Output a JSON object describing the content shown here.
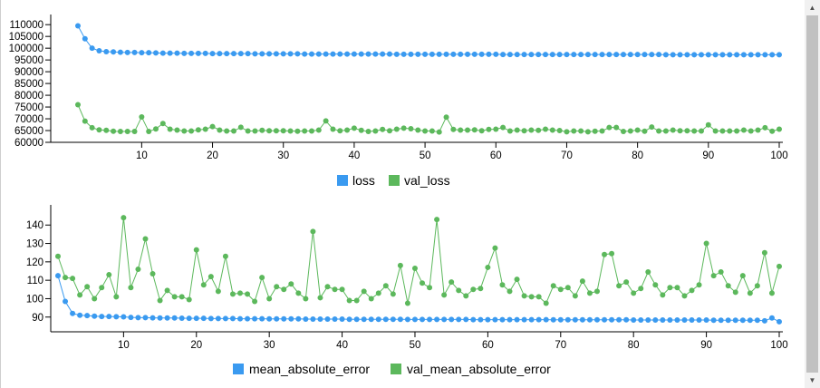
{
  "chart_data": [
    {
      "type": "line",
      "x": [
        1,
        2,
        3,
        4,
        5,
        6,
        7,
        8,
        9,
        10,
        11,
        12,
        13,
        14,
        15,
        16,
        17,
        18,
        19,
        20,
        21,
        22,
        23,
        24,
        25,
        26,
        27,
        28,
        29,
        30,
        31,
        32,
        33,
        34,
        35,
        36,
        37,
        38,
        39,
        40,
        41,
        42,
        43,
        44,
        45,
        46,
        47,
        48,
        49,
        50,
        51,
        52,
        53,
        54,
        55,
        56,
        57,
        58,
        59,
        60,
        61,
        62,
        63,
        64,
        65,
        66,
        67,
        68,
        69,
        70,
        71,
        72,
        73,
        74,
        75,
        76,
        77,
        78,
        79,
        80,
        81,
        82,
        83,
        84,
        85,
        86,
        87,
        88,
        89,
        90,
        91,
        92,
        93,
        94,
        95,
        96,
        97,
        98,
        99,
        100
      ],
      "xticks": [
        10,
        20,
        30,
        40,
        50,
        60,
        70,
        80,
        90,
        100
      ],
      "yticks": [
        60000,
        65000,
        70000,
        75000,
        80000,
        85000,
        90000,
        95000,
        100000,
        105000,
        110000
      ],
      "ylim": [
        60000,
        112000
      ],
      "xlim": [
        0,
        100
      ],
      "legend_position": "bottom",
      "series": [
        {
          "name": "loss",
          "color": "#3a9af0",
          "values": [
            109500,
            104000,
            100000,
            98900,
            98500,
            98400,
            98300,
            98200,
            98200,
            98100,
            98100,
            98000,
            97900,
            97900,
            97900,
            97800,
            97800,
            97800,
            97800,
            97700,
            97700,
            97700,
            97700,
            97700,
            97700,
            97600,
            97600,
            97600,
            97600,
            97600,
            97600,
            97600,
            97500,
            97500,
            97500,
            97500,
            97500,
            97500,
            97500,
            97500,
            97500,
            97500,
            97500,
            97500,
            97500,
            97400,
            97400,
            97400,
            97400,
            97400,
            97400,
            97400,
            97400,
            97400,
            97400,
            97400,
            97400,
            97400,
            97400,
            97400,
            97300,
            97300,
            97300,
            97300,
            97300,
            97300,
            97300,
            97300,
            97300,
            97300,
            97300,
            97300,
            97300,
            97300,
            97300,
            97300,
            97300,
            97300,
            97300,
            97300,
            97300,
            97300,
            97300,
            97200,
            97200,
            97200,
            97200,
            97200,
            97200,
            97200,
            97200,
            97200,
            97200,
            97200,
            97200,
            97200,
            97200,
            97200,
            97200,
            97200
          ]
        },
        {
          "name": "val_loss",
          "color": "#5cb85c",
          "values": [
            76000,
            69000,
            66200,
            65300,
            65100,
            64700,
            64600,
            64600,
            64600,
            70800,
            64600,
            65700,
            68000,
            65600,
            65200,
            64800,
            64800,
            65300,
            65600,
            66700,
            65200,
            64800,
            64800,
            66400,
            64800,
            64800,
            65100,
            64900,
            64900,
            64900,
            64800,
            64700,
            64800,
            64800,
            65200,
            69100,
            65600,
            64900,
            65200,
            66000,
            65100,
            64600,
            64800,
            65500,
            64900,
            65600,
            66000,
            65800,
            65200,
            64800,
            64800,
            64400,
            70700,
            65500,
            65200,
            65200,
            65300,
            64900,
            65500,
            65600,
            66300,
            64800,
            65200,
            64900,
            65200,
            65100,
            65600,
            65200,
            65000,
            64500,
            64800,
            64800,
            64500,
            64700,
            64800,
            66300,
            66300,
            64600,
            64800,
            65200,
            64700,
            66500,
            64800,
            64800,
            65200,
            64900,
            64900,
            64800,
            64800,
            67400,
            64800,
            64800,
            64800,
            64800,
            65200,
            64800,
            65200,
            66200,
            64700,
            65600
          ]
        }
      ]
    },
    {
      "type": "line",
      "x": [
        1,
        2,
        3,
        4,
        5,
        6,
        7,
        8,
        9,
        10,
        11,
        12,
        13,
        14,
        15,
        16,
        17,
        18,
        19,
        20,
        21,
        22,
        23,
        24,
        25,
        26,
        27,
        28,
        29,
        30,
        31,
        32,
        33,
        34,
        35,
        36,
        37,
        38,
        39,
        40,
        41,
        42,
        43,
        44,
        45,
        46,
        47,
        48,
        49,
        50,
        51,
        52,
        53,
        54,
        55,
        56,
        57,
        58,
        59,
        60,
        61,
        62,
        63,
        64,
        65,
        66,
        67,
        68,
        69,
        70,
        71,
        72,
        73,
        74,
        75,
        76,
        77,
        78,
        79,
        80,
        81,
        82,
        83,
        84,
        85,
        86,
        87,
        88,
        89,
        90,
        91,
        92,
        93,
        94,
        95,
        96,
        97,
        98,
        99,
        100
      ],
      "xticks": [
        10,
        20,
        30,
        40,
        50,
        60,
        70,
        80,
        90,
        100
      ],
      "yticks": [
        90,
        100,
        110,
        120,
        130,
        140
      ],
      "ylim": [
        82,
        148
      ],
      "xlim": [
        0,
        100
      ],
      "legend_position": "bottom",
      "series": [
        {
          "name": "mean_absolute_error",
          "color": "#3a9af0",
          "values": [
            112.5,
            98.5,
            92.0,
            91.0,
            90.8,
            90.5,
            90.3,
            90.3,
            90.2,
            90.1,
            89.8,
            89.7,
            89.7,
            89.6,
            89.5,
            89.5,
            89.5,
            89.4,
            89.3,
            89.3,
            89.3,
            89.2,
            89.2,
            89.2,
            89.2,
            89.1,
            89.1,
            89.1,
            89.1,
            89.0,
            89.0,
            89.0,
            89.0,
            89.0,
            88.9,
            88.9,
            88.9,
            88.9,
            88.9,
            88.9,
            88.8,
            88.8,
            88.8,
            88.8,
            88.8,
            88.8,
            88.8,
            88.8,
            88.7,
            88.7,
            88.7,
            88.7,
            88.7,
            88.7,
            88.7,
            88.7,
            88.7,
            88.6,
            88.6,
            88.6,
            88.6,
            88.6,
            88.6,
            88.6,
            88.6,
            88.6,
            88.6,
            88.6,
            88.5,
            88.5,
            88.5,
            88.5,
            88.5,
            88.5,
            88.5,
            88.5,
            88.5,
            88.5,
            88.5,
            88.4,
            88.4,
            88.4,
            88.4,
            88.4,
            88.4,
            88.4,
            88.4,
            88.4,
            88.4,
            88.4,
            88.3,
            88.3,
            88.3,
            88.3,
            88.3,
            88.3,
            88.3,
            88.0,
            89.5,
            87.5
          ]
        },
        {
          "name": "val_mean_absolute_error",
          "color": "#5cb85c",
          "values": [
            123,
            111.5,
            111,
            102,
            106.5,
            100,
            106,
            113,
            101,
            144,
            106,
            116,
            132.5,
            113.5,
            99,
            104.5,
            101,
            101,
            99.5,
            126.5,
            107.5,
            112,
            104,
            123,
            102.5,
            103,
            102.5,
            98.5,
            111.5,
            100,
            106.5,
            105,
            108,
            103,
            100,
            136.5,
            100.5,
            106.5,
            105,
            105,
            99,
            99,
            104,
            100,
            103,
            107,
            102.5,
            118,
            97.5,
            116.5,
            108.5,
            106,
            143,
            102,
            109,
            104.5,
            101.5,
            105,
            105.5,
            117,
            127.5,
            107.5,
            104,
            110.5,
            101.5,
            101,
            101,
            97.5,
            107,
            105,
            106,
            101.5,
            109.5,
            103,
            104,
            124,
            124.5,
            107,
            109,
            103,
            105.5,
            114.5,
            107.5,
            102,
            106,
            106,
            101.5,
            104.5,
            107.5,
            130,
            112.5,
            114.5,
            107,
            103.5,
            112.5,
            103,
            107,
            125,
            103,
            117.5
          ]
        }
      ]
    }
  ]
}
